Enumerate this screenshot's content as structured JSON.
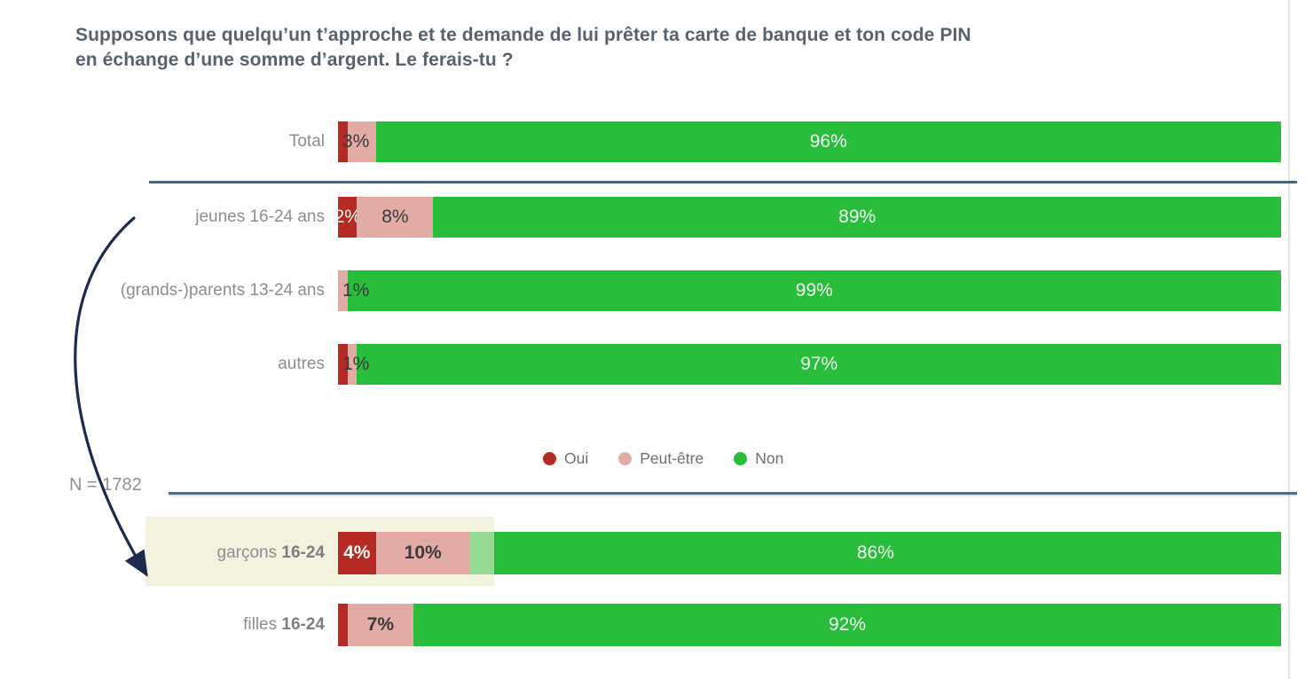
{
  "chart_data": {
    "type": "bar",
    "subtype": "horizontal-stacked-percentage",
    "title": "Supposons que quelqu’un t’approche et te demande de lui prêter ta carte de banque et ton code PIN\nen échange d’une somme d’argent. Le ferais-tu ?",
    "unit": "%",
    "xlim": [
      0,
      100
    ],
    "n_label": "N = 1782",
    "legend_position": "middle-center",
    "legend": [
      {
        "key": "oui",
        "label": "Oui",
        "color": "#b52a22"
      },
      {
        "key": "peutetre",
        "label": "Peut-être",
        "color": "#e2aba6"
      },
      {
        "key": "non",
        "label": "Non",
        "color": "#28bd3b"
      }
    ],
    "colors": {
      "oui": "#b52a22",
      "peutetre": "#e2aba6",
      "non": "#28bd3b",
      "highlight_box": "#f3f2df",
      "separator_top": "#4d6370",
      "separator_bottom": "#46708f",
      "annotation_arrow": "#1c2a4e"
    },
    "highlighted_row": "garcons-16-24",
    "annotation_arrow": {
      "from": "jeunes 16-24 ans",
      "to": "garçons 16-24"
    },
    "rows": [
      {
        "name": "total",
        "label": "Total",
        "label_bold": "",
        "section": "top",
        "segments": [
          {
            "key": "oui",
            "value": 1,
            "label": ""
          },
          {
            "key": "peutetre",
            "value": 3,
            "label": "3%",
            "label_pos": "start",
            "label_tone": "dark"
          },
          {
            "key": "non",
            "value": 96,
            "label": "96%",
            "label_pos": "center",
            "label_tone": "light"
          }
        ]
      },
      {
        "name": "jeunes-16-24",
        "label": "jeunes 16-24 ans",
        "label_bold": "",
        "section": "top",
        "segments": [
          {
            "key": "oui",
            "value": 2,
            "label": "2%",
            "label_pos": "center",
            "label_tone": "light"
          },
          {
            "key": "peutetre",
            "value": 8,
            "label": "8%",
            "label_pos": "center",
            "label_tone": "dark"
          },
          {
            "key": "non",
            "value": 89,
            "label": "89%",
            "label_pos": "center",
            "label_tone": "light"
          }
        ]
      },
      {
        "name": "grands-parents-13-24",
        "label": "(grands-)parents 13-24 ans",
        "label_bold": "",
        "section": "top",
        "segments": [
          {
            "key": "oui",
            "value": 0,
            "label": ""
          },
          {
            "key": "peutetre",
            "value": 1,
            "label": "1%",
            "label_pos": "start",
            "label_tone": "dark"
          },
          {
            "key": "non",
            "value": 99,
            "label": "99%",
            "label_pos": "center",
            "label_tone": "light"
          }
        ]
      },
      {
        "name": "autres",
        "label": "autres",
        "label_bold": "",
        "section": "top",
        "segments": [
          {
            "key": "oui",
            "value": 1,
            "label": "1%",
            "label_pos": "start",
            "label_tone": "dark"
          },
          {
            "key": "peutetre",
            "value": 1,
            "label": ""
          },
          {
            "key": "non",
            "value": 97,
            "label": "97%",
            "label_pos": "center",
            "label_tone": "light"
          }
        ]
      },
      {
        "name": "garcons-16-24",
        "label": "garçons ",
        "label_bold": "16-24",
        "section": "bottom",
        "highlight": true,
        "segments": [
          {
            "key": "oui",
            "value": 4,
            "label": "4%",
            "label_pos": "center",
            "label_tone": "light",
            "bold": true
          },
          {
            "key": "peutetre",
            "value": 10,
            "label": "10%",
            "label_pos": "center",
            "label_tone": "dark",
            "bold": true
          },
          {
            "key": "non",
            "value": 86,
            "label": "86%",
            "label_pos": "center",
            "label_tone": "light"
          }
        ]
      },
      {
        "name": "filles-16-24",
        "label": "filles ",
        "label_bold": "16-24",
        "section": "bottom",
        "segments": [
          {
            "key": "oui",
            "value": 1,
            "label": ""
          },
          {
            "key": "peutetre",
            "value": 7,
            "label": "7%",
            "label_pos": "center",
            "label_tone": "dark",
            "bold": true
          },
          {
            "key": "non",
            "value": 92,
            "label": "92%",
            "label_pos": "center",
            "label_tone": "light"
          }
        ]
      }
    ]
  }
}
